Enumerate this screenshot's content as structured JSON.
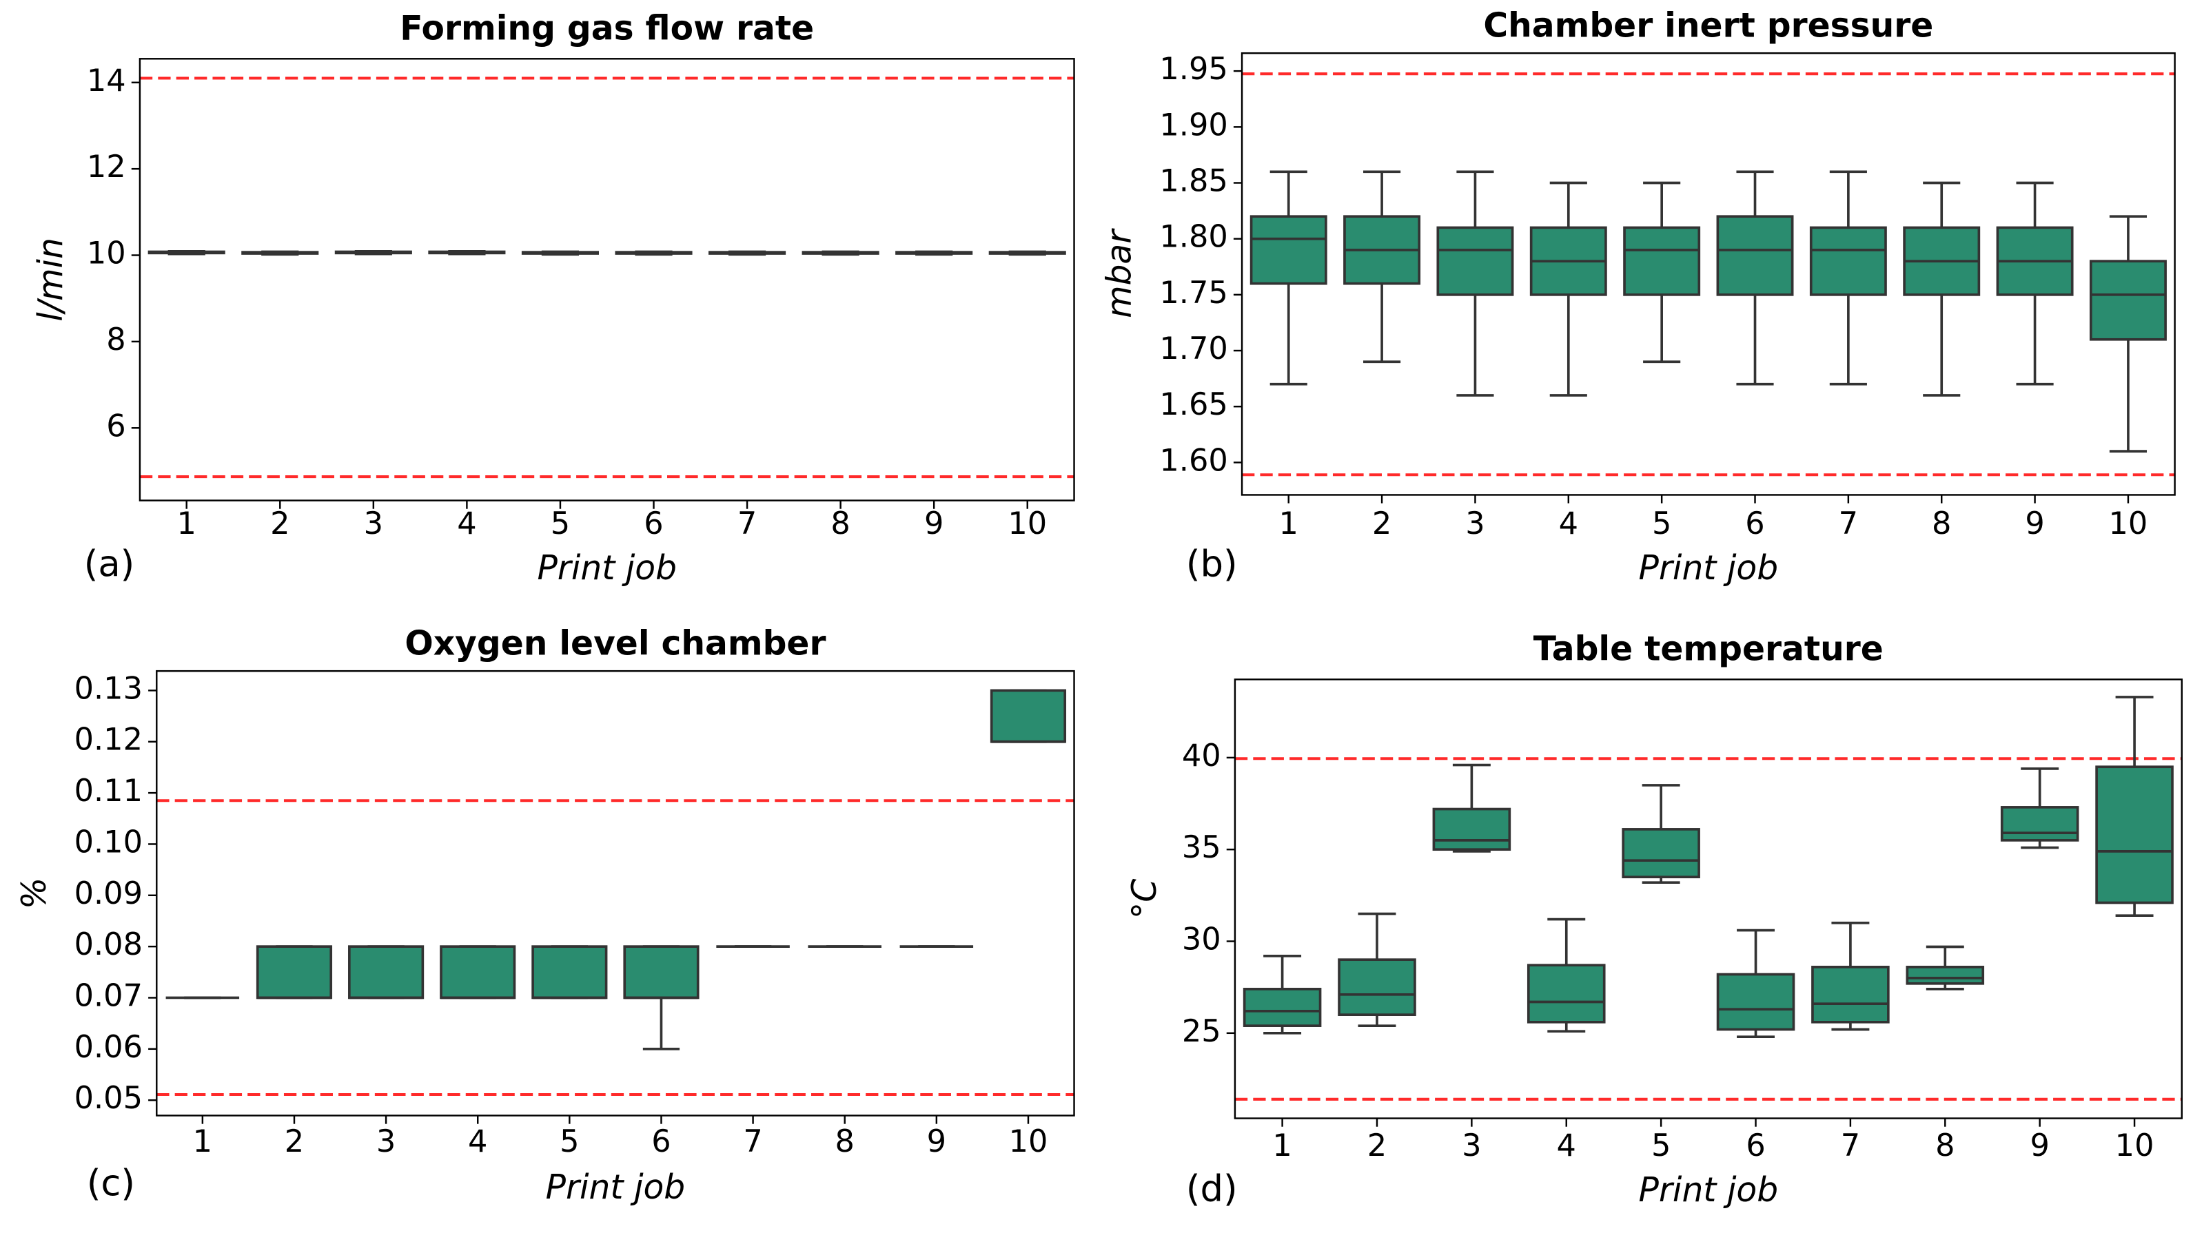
{
  "chart_data": [
    {
      "type": "box",
      "title": "Forming gas flow rate",
      "xlabel": "Print job",
      "ylabel": "l/min",
      "label": "(a)",
      "categories": [
        "1",
        "2",
        "3",
        "4",
        "5",
        "6",
        "7",
        "8",
        "9",
        "10"
      ],
      "whisker_low": [
        10.03,
        10.02,
        10.03,
        10.03,
        10.02,
        10.02,
        10.02,
        10.02,
        10.02,
        10.02
      ],
      "q1": [
        10.05,
        10.04,
        10.05,
        10.05,
        10.04,
        10.04,
        10.04,
        10.04,
        10.04,
        10.04
      ],
      "median": [
        10.06,
        10.05,
        10.06,
        10.06,
        10.05,
        10.05,
        10.05,
        10.05,
        10.05,
        10.05
      ],
      "q3": [
        10.08,
        10.07,
        10.08,
        10.08,
        10.07,
        10.07,
        10.07,
        10.07,
        10.07,
        10.07
      ],
      "whisker_high": [
        10.09,
        10.08,
        10.09,
        10.09,
        10.08,
        10.08,
        10.08,
        10.08,
        10.08,
        10.08
      ],
      "color": "#2a8c6f",
      "reference_lines": [
        14.1,
        4.87
      ],
      "reference_color": "#ff2a2a",
      "ylim": [
        4.32,
        14.55
      ],
      "yticks": [
        6,
        8,
        10,
        12,
        14
      ]
    },
    {
      "type": "box",
      "title": "Chamber inert pressure",
      "xlabel": "Print job",
      "ylabel": "mbar",
      "label": "(b)",
      "categories": [
        "1",
        "2",
        "3",
        "4",
        "5",
        "6",
        "7",
        "8",
        "9",
        "10"
      ],
      "whisker_low": [
        1.67,
        1.69,
        1.66,
        1.66,
        1.69,
        1.67,
        1.67,
        1.66,
        1.67,
        1.61
      ],
      "q1": [
        1.76,
        1.76,
        1.75,
        1.75,
        1.75,
        1.75,
        1.75,
        1.75,
        1.75,
        1.71
      ],
      "median": [
        1.8,
        1.79,
        1.79,
        1.78,
        1.79,
        1.79,
        1.79,
        1.78,
        1.78,
        1.75
      ],
      "q3": [
        1.82,
        1.82,
        1.81,
        1.81,
        1.81,
        1.82,
        1.81,
        1.81,
        1.81,
        1.78
      ],
      "whisker_high": [
        1.86,
        1.86,
        1.86,
        1.85,
        1.85,
        1.86,
        1.86,
        1.85,
        1.85,
        1.82
      ],
      "color": "#2a8c6f",
      "reference_lines": [
        1.9475,
        1.589
      ],
      "reference_color": "#ff2a2a",
      "ylim": [
        1.571,
        1.966
      ],
      "yticks": [
        {
          "value": 1.6,
          "label": "1.60"
        },
        1.65,
        {
          "value": 1.7,
          "label": "1.70"
        },
        1.75,
        {
          "value": 1.8,
          "label": "1.80"
        },
        1.85,
        {
          "value": 1.9,
          "label": "1.90"
        },
        1.95
      ]
    },
    {
      "type": "box",
      "title": "Oxygen level chamber",
      "xlabel": "Print job",
      "ylabel": "%",
      "label": "(c)",
      "categories": [
        "1",
        "2",
        "3",
        "4",
        "5",
        "6",
        "7",
        "8",
        "9",
        "10"
      ],
      "whisker_low": [
        0.07,
        0.07,
        0.07,
        0.07,
        0.07,
        0.06,
        0.08,
        0.08,
        0.08,
        0.12
      ],
      "q1": [
        0.07,
        0.07,
        0.07,
        0.07,
        0.07,
        0.07,
        0.08,
        0.08,
        0.08,
        0.12
      ],
      "median": [
        0.07,
        0.07,
        0.07,
        0.07,
        0.07,
        0.07,
        0.08,
        0.08,
        0.08,
        0.12
      ],
      "q3": [
        0.07,
        0.08,
        0.08,
        0.08,
        0.08,
        0.08,
        0.08,
        0.08,
        0.08,
        0.13
      ],
      "whisker_high": [
        0.07,
        0.08,
        0.08,
        0.08,
        0.08,
        0.08,
        0.08,
        0.08,
        0.08,
        0.13
      ],
      "color": "#2a8c6f",
      "reference_lines": [
        0.1085,
        0.0511
      ],
      "reference_color": "#ff2a2a",
      "ylim": [
        0.047,
        0.1338
      ],
      "yticks": [
        0.05,
        0.06,
        0.07,
        0.08,
        0.09,
        {
          "value": 0.1,
          "label": "0.10"
        },
        0.11,
        0.12,
        0.13
      ]
    },
    {
      "type": "box",
      "title": "Table temperature",
      "xlabel": "Print job",
      "ylabel": "°C",
      "label": "(d)",
      "categories": [
        "1",
        "2",
        "3",
        "4",
        "5",
        "6",
        "7",
        "8",
        "9",
        "10"
      ],
      "whisker_low": [
        25.0,
        25.4,
        34.9,
        25.1,
        33.2,
        24.8,
        25.2,
        27.4,
        35.1,
        31.4
      ],
      "q1": [
        25.4,
        26.0,
        35.0,
        25.6,
        33.5,
        25.2,
        25.6,
        27.7,
        35.5,
        32.1
      ],
      "median": [
        26.2,
        27.1,
        35.5,
        26.7,
        34.4,
        26.3,
        26.6,
        28.0,
        35.9,
        34.9
      ],
      "q3": [
        27.4,
        29.0,
        37.2,
        28.7,
        36.1,
        28.2,
        28.6,
        28.6,
        37.3,
        39.5
      ],
      "whisker_high": [
        29.2,
        31.5,
        39.6,
        31.2,
        38.5,
        30.6,
        31.0,
        29.7,
        39.4,
        43.3
      ],
      "color": "#2a8c6f",
      "reference_lines": [
        39.95,
        21.4
      ],
      "reference_color": "#ff2a2a",
      "ylim": [
        20.36,
        44.26
      ],
      "yticks": [
        25,
        30,
        35,
        40
      ]
    }
  ]
}
